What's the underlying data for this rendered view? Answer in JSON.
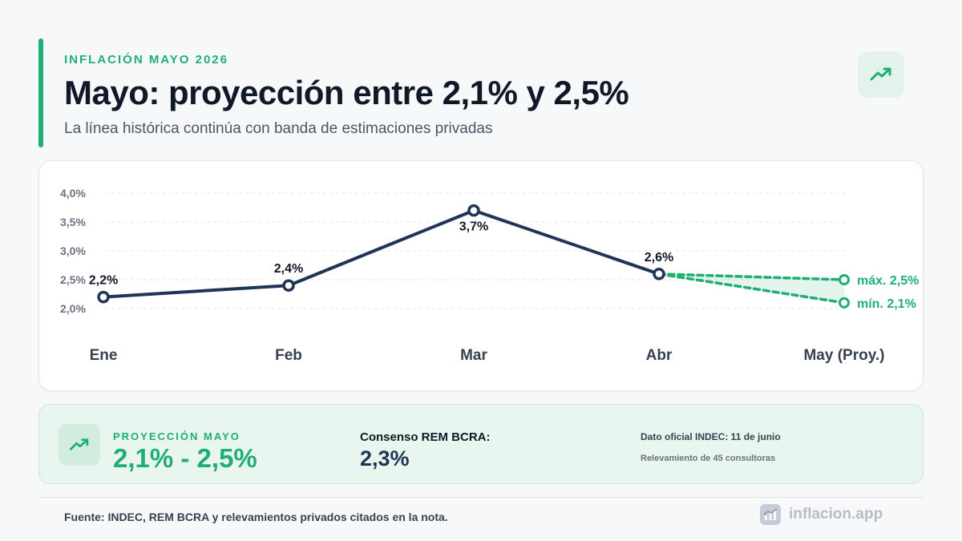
{
  "header": {
    "eyebrow": "INFLACIÓN MAYO 2026",
    "title": "Mayo: proyección entre 2,1% y 2,5%",
    "subtitle": "La línea histórica continúa con banda de estimaciones privadas",
    "badge_icon": "trending-up-icon"
  },
  "chart_data": {
    "type": "line",
    "categories": [
      "Ene",
      "Feb",
      "Mar",
      "Abr",
      "May (Proy.)"
    ],
    "ylim": [
      2.0,
      4.0
    ],
    "yticks": [
      2.0,
      2.5,
      3.0,
      3.5,
      4.0
    ],
    "ytick_labels": [
      "2,0%",
      "2,5%",
      "3,0%",
      "3,5%",
      "4,0%"
    ],
    "grid": true,
    "series": [
      {
        "style": "solid",
        "color": "#1e3556",
        "x": [
          "Ene",
          "Feb",
          "Mar",
          "Abr"
        ],
        "values": [
          2.2,
          2.4,
          3.7,
          2.6
        ],
        "labels": [
          "2,2%",
          "2,4%",
          "3,7%",
          "2,6%"
        ]
      }
    ],
    "projection": {
      "color": "#1fae73",
      "from": "Abr",
      "from_value": 2.6,
      "to": "May (Proy.)",
      "max": 2.5,
      "min": 2.1,
      "max_label": "máx. 2,5%",
      "min_label": "mín. 2,1%"
    }
  },
  "summary": {
    "icon": "trending-up-icon",
    "projection_label": "PROYECCIÓN MAYO",
    "projection_value": "2,1% - 2,5%",
    "consensus_label": "Consenso REM BCRA:",
    "consensus_value": "2,3%",
    "official_date": "Dato oficial INDEC: 11 de junio",
    "survey": "Relevamiento de 45 consultoras"
  },
  "footer": {
    "source": "Fuente: INDEC, REM BCRA y relevamientos privados citados en la nota.",
    "brand": "inflacion.app",
    "brand_icon": "chart-logo-icon"
  },
  "colors": {
    "accent": "#1fae73",
    "navy": "#1e3556"
  }
}
